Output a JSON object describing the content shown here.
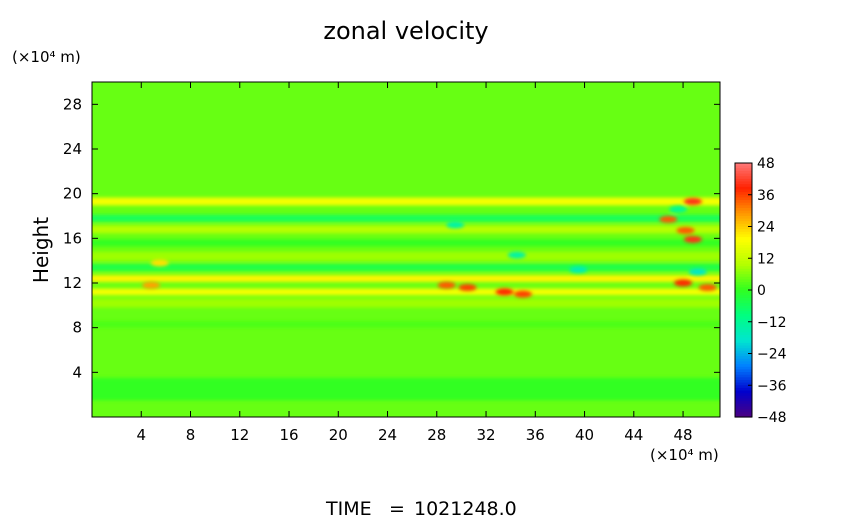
{
  "chart_data": {
    "type": "heatmap",
    "title": "zonal velocity",
    "ylabel": "Height",
    "xlabel": "",
    "x_unit": "(×10⁴ m)",
    "y_unit": "(×10⁴ m)",
    "xlim": [
      0,
      51
    ],
    "ylim": [
      0,
      30
    ],
    "x_ticks": [
      4,
      8,
      12,
      16,
      20,
      24,
      28,
      32,
      36,
      40,
      44,
      48
    ],
    "y_ticks": [
      4,
      8,
      12,
      16,
      20,
      24,
      28
    ],
    "x_tick_labels": [
      "4",
      "8",
      "12",
      "16",
      "20",
      "24",
      "28",
      "32",
      "36",
      "40",
      "44",
      "48"
    ],
    "y_tick_labels": [
      "4",
      "8",
      "12",
      "16",
      "20",
      "24",
      "28"
    ],
    "colorbar": {
      "min": -48,
      "max": 48,
      "ticks": [
        48,
        36,
        24,
        12,
        0,
        -12,
        -24,
        -36,
        -48
      ],
      "tick_labels": [
        "48",
        "36",
        "24",
        "12",
        "0",
        "−12",
        "−24",
        "−36",
        "−48"
      ],
      "colors": [
        "#4b0082",
        "#0000cd",
        "#0080ff",
        "#00e5d0",
        "#00ff80",
        "#30ff20",
        "#b4ff00",
        "#ffff00",
        "#ff9900",
        "#ff2200",
        "#ff7a7a"
      ]
    },
    "field": {
      "base_value": 4,
      "bands": [
        {
          "y": 19.3,
          "width": 0.7,
          "value": 18
        },
        {
          "y": 17.8,
          "width": 0.6,
          "value": -6
        },
        {
          "y": 16.8,
          "width": 0.7,
          "value": 10
        },
        {
          "y": 15.6,
          "width": 0.6,
          "value": 0
        },
        {
          "y": 14.4,
          "width": 0.8,
          "value": 8
        },
        {
          "y": 13.4,
          "width": 0.6,
          "value": -4
        },
        {
          "y": 12.4,
          "width": 0.6,
          "value": 20
        },
        {
          "y": 11.2,
          "width": 0.6,
          "value": 18
        },
        {
          "y": 10.2,
          "width": 0.8,
          "value": 8
        },
        {
          "y": 8.3,
          "width": 0.6,
          "value": 2
        },
        {
          "y": 2.5,
          "width": 2.0,
          "value": 0
        }
      ],
      "features": [
        {
          "x": 28.8,
          "y": 11.8,
          "value": 34
        },
        {
          "x": 30.5,
          "y": 11.6,
          "value": 36
        },
        {
          "x": 33.5,
          "y": 11.2,
          "value": 38
        },
        {
          "x": 35.0,
          "y": 11.0,
          "value": 36
        },
        {
          "x": 48.8,
          "y": 19.3,
          "value": 40
        },
        {
          "x": 46.8,
          "y": 17.7,
          "value": 34
        },
        {
          "x": 48.2,
          "y": 16.7,
          "value": 34
        },
        {
          "x": 48.8,
          "y": 15.9,
          "value": 40
        },
        {
          "x": 48.0,
          "y": 12.0,
          "value": 38
        },
        {
          "x": 50.0,
          "y": 11.6,
          "value": 34
        },
        {
          "x": 4.8,
          "y": 11.8,
          "value": 28
        },
        {
          "x": 5.5,
          "y": 13.8,
          "value": 22
        },
        {
          "x": 29.5,
          "y": 17.2,
          "value": -14
        },
        {
          "x": 34.5,
          "y": 14.5,
          "value": -14
        },
        {
          "x": 39.5,
          "y": 13.2,
          "value": -16
        },
        {
          "x": 49.2,
          "y": 13.0,
          "value": -18
        },
        {
          "x": 47.6,
          "y": 18.6,
          "value": -12
        }
      ]
    }
  },
  "footer": {
    "time_label": "TIME",
    "time_equals": "=",
    "time_value": "1021248.0"
  }
}
